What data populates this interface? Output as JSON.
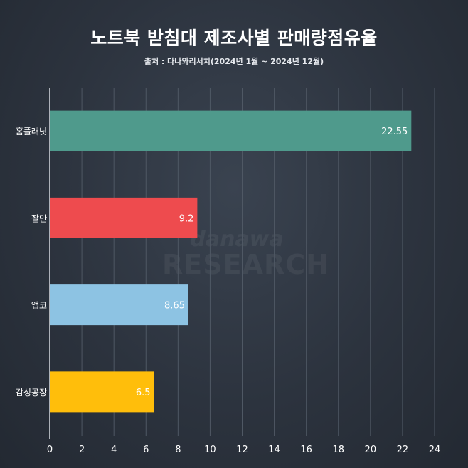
{
  "title": "노트북 받침대 제조사별 판매량점유율",
  "subtitle": "출처 : 다나와리서치(2024년 1월 ~ 2024년 12월)",
  "watermark": {
    "logo": "danawa",
    "text": "RESEARCH"
  },
  "colors": {
    "background": "#2c333e",
    "grid": "#4f5864",
    "axis": "#d9dde3"
  },
  "chart_data": {
    "type": "bar",
    "orientation": "horizontal",
    "title": "노트북 받침대 제조사별 판매량점유율",
    "subtitle": "출처 : 다나와리서치(2024년 1월 ~ 2024년 12월)",
    "categories": [
      "홈플래닛",
      "잘만",
      "앱코",
      "감성공장"
    ],
    "values": [
      22.55,
      9.2,
      8.65,
      6.5
    ],
    "value_labels": [
      "22.55",
      "9.2",
      "8.65",
      "6.5"
    ],
    "bar_colors": [
      "#4f9a8c",
      "#ee4b4e",
      "#8dc3e3",
      "#ffbe0b"
    ],
    "xlim": [
      0,
      24
    ],
    "xticks": [
      0,
      2,
      4,
      6,
      8,
      10,
      12,
      14,
      16,
      18,
      20,
      22,
      24
    ],
    "xlabel": "",
    "ylabel": "",
    "grid": "vertical"
  }
}
